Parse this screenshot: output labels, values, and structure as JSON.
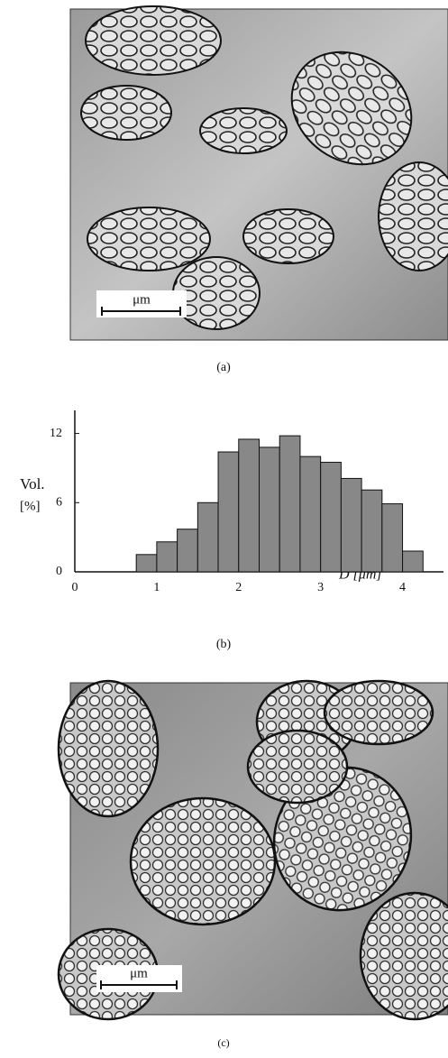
{
  "captions": [
    "(a)",
    "(b)",
    "(c)"
  ],
  "scale_bars": [
    "μm",
    "μm"
  ],
  "chart_data": {
    "type": "histogram",
    "ylabel": [
      "Vol.",
      "[%]"
    ],
    "xlabel": "D [μm]",
    "bins": [
      0.75,
      1.0,
      1.25,
      1.5,
      1.75,
      2.0,
      2.25,
      2.5,
      2.75,
      3.0,
      3.25,
      3.5,
      3.75,
      4.0,
      4.25
    ],
    "values": [
      1.5,
      2.6,
      3.7,
      6.0,
      10.4,
      11.5,
      10.8,
      11.8,
      10.0,
      9.5,
      8.1,
      7.1,
      5.9,
      1.8
    ],
    "color": "#888888",
    "xlim": [
      0,
      4.5
    ],
    "xticks": [
      0,
      1,
      2,
      3,
      4
    ],
    "ylim": [
      0,
      14
    ],
    "yticks": [
      0,
      6,
      12
    ]
  }
}
